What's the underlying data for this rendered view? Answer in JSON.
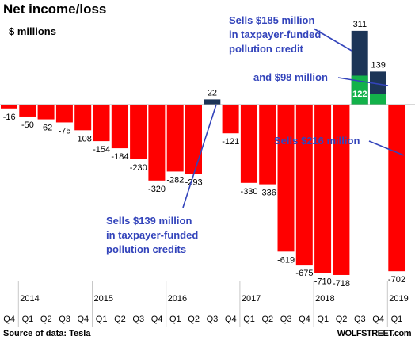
{
  "chart_data": {
    "type": "bar",
    "title": "Net income/loss",
    "ylabel": "$ millions",
    "categories": [
      "Q4",
      "Q1",
      "Q2",
      "Q3",
      "Q4",
      "Q1",
      "Q2",
      "Q3",
      "Q4",
      "Q1",
      "Q2",
      "Q3",
      "Q4",
      "Q1",
      "Q2",
      "Q3",
      "Q4",
      "Q1",
      "Q2",
      "Q3",
      "Q4",
      "Q1"
    ],
    "years": [
      {
        "label": "2014",
        "quarter_index": 1
      },
      {
        "label": "2015",
        "quarter_index": 5
      },
      {
        "label": "2016",
        "quarter_index": 9
      },
      {
        "label": "2017",
        "quarter_index": 13
      },
      {
        "label": "2018",
        "quarter_index": 17
      },
      {
        "label": "2019",
        "quarter_index": 21
      }
    ],
    "values": [
      -16,
      -50,
      -62,
      -75,
      -108,
      -154,
      -184,
      -230,
      -320,
      -282,
      -293,
      22,
      -121,
      -330,
      -336,
      -619,
      -675,
      -710,
      -718,
      311,
      139,
      -702
    ],
    "credit_portion": [
      {
        "quarter_index": 19,
        "value": 122
      },
      {
        "quarter_index": 20,
        "value": 45
      }
    ],
    "ylim": [
      -730,
      330
    ],
    "grid": false,
    "colors": {
      "loss": "#ff0000",
      "profit": "#1c3557",
      "credit": "#13b24a",
      "annotation": "#3344bb"
    },
    "annotations": [
      {
        "lines": [
          "Sells $185 million",
          "in taxpayer-funded",
          "pollution credit"
        ],
        "target_quarter_index": 19
      },
      {
        "lines": [
          "and $98 million"
        ],
        "target_quarter_index": 20
      },
      {
        "lines": [
          "Sells $216 million"
        ],
        "target_quarter_index": 21
      },
      {
        "lines": [
          "Sells $139 million",
          "in taxpayer-funded",
          "pollution credits"
        ],
        "target_quarter_index": 11
      }
    ]
  },
  "footer": {
    "source": "Source of data: Tesla",
    "brand": "WOLFSTREET.com"
  }
}
